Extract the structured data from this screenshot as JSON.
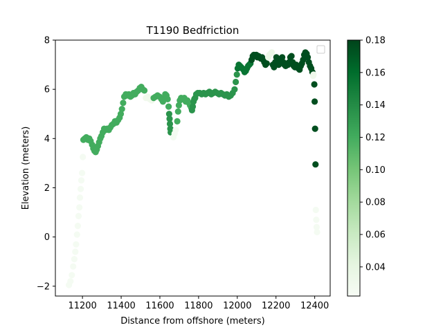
{
  "chart_data": {
    "type": "scatter",
    "title": "T1190 Bedfriction",
    "xlabel": "Distance from offshore (meters)",
    "ylabel": "Elevation (meters)",
    "xlim": [
      11060,
      12480
    ],
    "ylim": [
      -2.4,
      8
    ],
    "x_ticks": [
      11200,
      11400,
      11600,
      11800,
      12000,
      12200,
      12400
    ],
    "y_ticks": [
      -2,
      0,
      2,
      4,
      6,
      8
    ],
    "grid": false,
    "legend": "top-right (empty)",
    "colorbar": {
      "colormap": "Greens",
      "range": [
        0.022,
        0.18
      ],
      "ticks": [
        0.04,
        0.06,
        0.08,
        0.1,
        0.12,
        0.14,
        0.16,
        0.18
      ],
      "tick_labels": [
        "0.04",
        "0.06",
        "0.08",
        "0.10",
        "0.12",
        "0.14",
        "0.16",
        "0.18"
      ]
    },
    "segments": [
      {
        "c": 0.025,
        "pts": [
          [
            11130,
            -1.95
          ],
          [
            11138,
            -1.8
          ],
          [
            11145,
            -1.55
          ],
          [
            11152,
            -1.2
          ],
          [
            11158,
            -0.9
          ],
          [
            11163,
            -0.6
          ],
          [
            11167,
            -0.3
          ],
          [
            11172,
            0.1
          ],
          [
            11176,
            0.45
          ],
          [
            11180,
            0.85
          ],
          [
            11184,
            1.2
          ],
          [
            11187,
            1.6
          ],
          [
            11191,
            1.95
          ],
          [
            11194,
            2.3
          ],
          [
            11198,
            2.6
          ],
          [
            11202,
            3.25
          ]
        ]
      },
      {
        "c": 0.12,
        "pts": [
          [
            11205,
            3.95
          ],
          [
            11212,
            4.0
          ],
          [
            11220,
            4.05
          ],
          [
            11228,
            3.95
          ],
          [
            11235,
            4.0
          ],
          [
            11242,
            3.9
          ],
          [
            11250,
            3.75
          ],
          [
            11256,
            3.6
          ],
          [
            11262,
            3.5
          ],
          [
            11268,
            3.45
          ],
          [
            11274,
            3.55
          ],
          [
            11280,
            3.7
          ],
          [
            11286,
            3.85
          ],
          [
            11292,
            4.0
          ],
          [
            11298,
            4.1
          ],
          [
            11305,
            4.25
          ],
          [
            11312,
            4.4
          ],
          [
            11320,
            4.35
          ],
          [
            11328,
            4.4
          ],
          [
            11336,
            4.35
          ],
          [
            11344,
            4.45
          ],
          [
            11352,
            4.55
          ],
          [
            11360,
            4.6
          ],
          [
            11368,
            4.7
          ],
          [
            11376,
            4.65
          ],
          [
            11384,
            4.75
          ],
          [
            11392,
            4.85
          ],
          [
            11398,
            5.0
          ],
          [
            11404,
            5.2
          ],
          [
            11410,
            5.45
          ],
          [
            11416,
            5.7
          ],
          [
            11424,
            5.8
          ],
          [
            11432,
            5.75
          ],
          [
            11440,
            5.8
          ],
          [
            11448,
            5.7
          ],
          [
            11456,
            5.75
          ],
          [
            11464,
            5.85
          ],
          [
            11472,
            5.8
          ],
          [
            11480,
            5.9
          ],
          [
            11488,
            5.95
          ],
          [
            11496,
            6.05
          ],
          [
            11504,
            6.1
          ],
          [
            11512,
            6.0
          ],
          [
            11520,
            5.95
          ]
        ]
      },
      {
        "c": 0.03,
        "pts": [
          [
            11528,
            5.65
          ],
          [
            11538,
            5.7
          ],
          [
            11548,
            5.6
          ],
          [
            11558,
            5.55
          ]
        ]
      },
      {
        "c": 0.12,
        "pts": [
          [
            11568,
            5.65
          ],
          [
            11578,
            5.7
          ],
          [
            11588,
            5.75
          ],
          [
            11598,
            5.7
          ],
          [
            11608,
            5.6
          ],
          [
            11616,
            5.5
          ],
          [
            11622,
            5.65
          ],
          [
            11628,
            5.8
          ],
          [
            11634,
            5.75
          ],
          [
            11640,
            5.6
          ],
          [
            11645,
            5.3
          ]
        ]
      },
      {
        "c": 0.135,
        "pts": [
          [
            11648,
            5.0
          ],
          [
            11650,
            4.8
          ],
          [
            11652,
            4.6
          ],
          [
            11654,
            4.4
          ],
          [
            11656,
            4.25
          ]
        ]
      },
      {
        "c": 0.025,
        "pts": [
          [
            11670,
            4.05
          ],
          [
            11676,
            4.2
          ],
          [
            11682,
            4.35
          ]
        ]
      },
      {
        "c": 0.12,
        "pts": [
          [
            11690,
            4.7
          ],
          [
            11694,
            5.1
          ],
          [
            11698,
            5.35
          ],
          [
            11703,
            5.55
          ],
          [
            11710,
            5.65
          ],
          [
            11718,
            5.6
          ],
          [
            11726,
            5.65
          ],
          [
            11734,
            5.5
          ],
          [
            11742,
            5.55
          ],
          [
            11750,
            5.45
          ],
          [
            11756,
            5.35
          ],
          [
            11762,
            5.25
          ]
        ]
      },
      {
        "c": 0.135,
        "pts": [
          [
            11766,
            5.15
          ],
          [
            11770,
            5.3
          ],
          [
            11774,
            5.5
          ],
          [
            11778,
            5.6
          ],
          [
            11782,
            5.65
          ],
          [
            11788,
            5.8
          ],
          [
            11796,
            5.85
          ],
          [
            11806,
            5.85
          ],
          [
            11816,
            5.8
          ],
          [
            11826,
            5.85
          ],
          [
            11836,
            5.8
          ],
          [
            11846,
            5.85
          ],
          [
            11856,
            5.9
          ],
          [
            11866,
            5.8
          ],
          [
            11876,
            5.85
          ],
          [
            11886,
            5.9
          ],
          [
            11896,
            5.85
          ],
          [
            11906,
            5.8
          ],
          [
            11916,
            5.85
          ],
          [
            11926,
            5.8
          ],
          [
            11936,
            5.75
          ],
          [
            11946,
            5.8
          ],
          [
            11956,
            5.7
          ],
          [
            11966,
            5.75
          ],
          [
            11976,
            5.85
          ],
          [
            11986,
            6.0
          ],
          [
            11992,
            6.3
          ],
          [
            11998,
            6.6
          ]
        ]
      },
      {
        "c": 0.155,
        "pts": [
          [
            12002,
            6.85
          ],
          [
            12008,
            7.0
          ],
          [
            12014,
            6.95
          ],
          [
            12020,
            6.9
          ],
          [
            12026,
            6.85
          ],
          [
            12032,
            6.8
          ],
          [
            12038,
            6.7
          ],
          [
            12044,
            6.75
          ],
          [
            12050,
            6.85
          ],
          [
            12056,
            6.95
          ],
          [
            12062,
            7.0
          ],
          [
            12068,
            7.05
          ]
        ]
      },
      {
        "c": 0.175,
        "pts": [
          [
            12074,
            7.2
          ],
          [
            12080,
            7.35
          ],
          [
            12086,
            7.4
          ],
          [
            12092,
            7.35
          ],
          [
            12098,
            7.4
          ],
          [
            12104,
            7.3
          ],
          [
            12110,
            7.35
          ],
          [
            12116,
            7.3
          ],
          [
            12122,
            7.25
          ],
          [
            12128,
            7.3
          ],
          [
            12134,
            7.2
          ],
          [
            12140,
            7.1
          ],
          [
            12146,
            7.0
          ],
          [
            12152,
            7.05
          ]
        ]
      },
      {
        "c": 0.035,
        "pts": [
          [
            12160,
            7.3
          ],
          [
            12166,
            7.4
          ],
          [
            12172,
            7.45
          ],
          [
            12178,
            7.5
          ]
        ]
      },
      {
        "c": 0.175,
        "pts": [
          [
            12184,
            7.0
          ],
          [
            12190,
            6.9
          ],
          [
            12196,
            7.1
          ],
          [
            12202,
            7.3
          ],
          [
            12208,
            7.2
          ],
          [
            12214,
            7.0
          ],
          [
            12220,
            7.1
          ],
          [
            12226,
            7.25
          ],
          [
            12232,
            7.3
          ],
          [
            12238,
            7.1
          ],
          [
            12244,
            7.0
          ],
          [
            12250,
            6.95
          ],
          [
            12256,
            7.05
          ],
          [
            12262,
            7.0
          ],
          [
            12268,
            7.1
          ],
          [
            12274,
            7.3
          ],
          [
            12280,
            7.35
          ],
          [
            12286,
            7.1
          ],
          [
            12292,
            6.95
          ],
          [
            12298,
            6.9
          ],
          [
            12304,
            7.0
          ],
          [
            12310,
            6.95
          ],
          [
            12316,
            6.85
          ],
          [
            12322,
            6.8
          ],
          [
            12328,
            6.95
          ],
          [
            12334,
            7.05
          ],
          [
            12340,
            7.2
          ],
          [
            12346,
            7.4
          ],
          [
            12352,
            7.5
          ],
          [
            12358,
            7.45
          ],
          [
            12364,
            7.3
          ],
          [
            12370,
            7.1
          ],
          [
            12376,
            6.95
          ],
          [
            12382,
            6.85
          ],
          [
            12388,
            6.7
          ]
        ]
      },
      {
        "c": 0.03,
        "pts": [
          [
            12392,
            6.55
          ],
          [
            12394,
            6.6
          ]
        ]
      },
      {
        "c": 0.175,
        "pts": [
          [
            12398,
            6.2
          ],
          [
            12400,
            5.5
          ],
          [
            12402,
            4.4
          ],
          [
            12404,
            2.95
          ]
        ]
      },
      {
        "c": 0.025,
        "pts": [
          [
            12406,
            1.1
          ],
          [
            12408,
            0.7
          ],
          [
            12410,
            0.4
          ],
          [
            12412,
            0.2
          ]
        ]
      }
    ]
  }
}
